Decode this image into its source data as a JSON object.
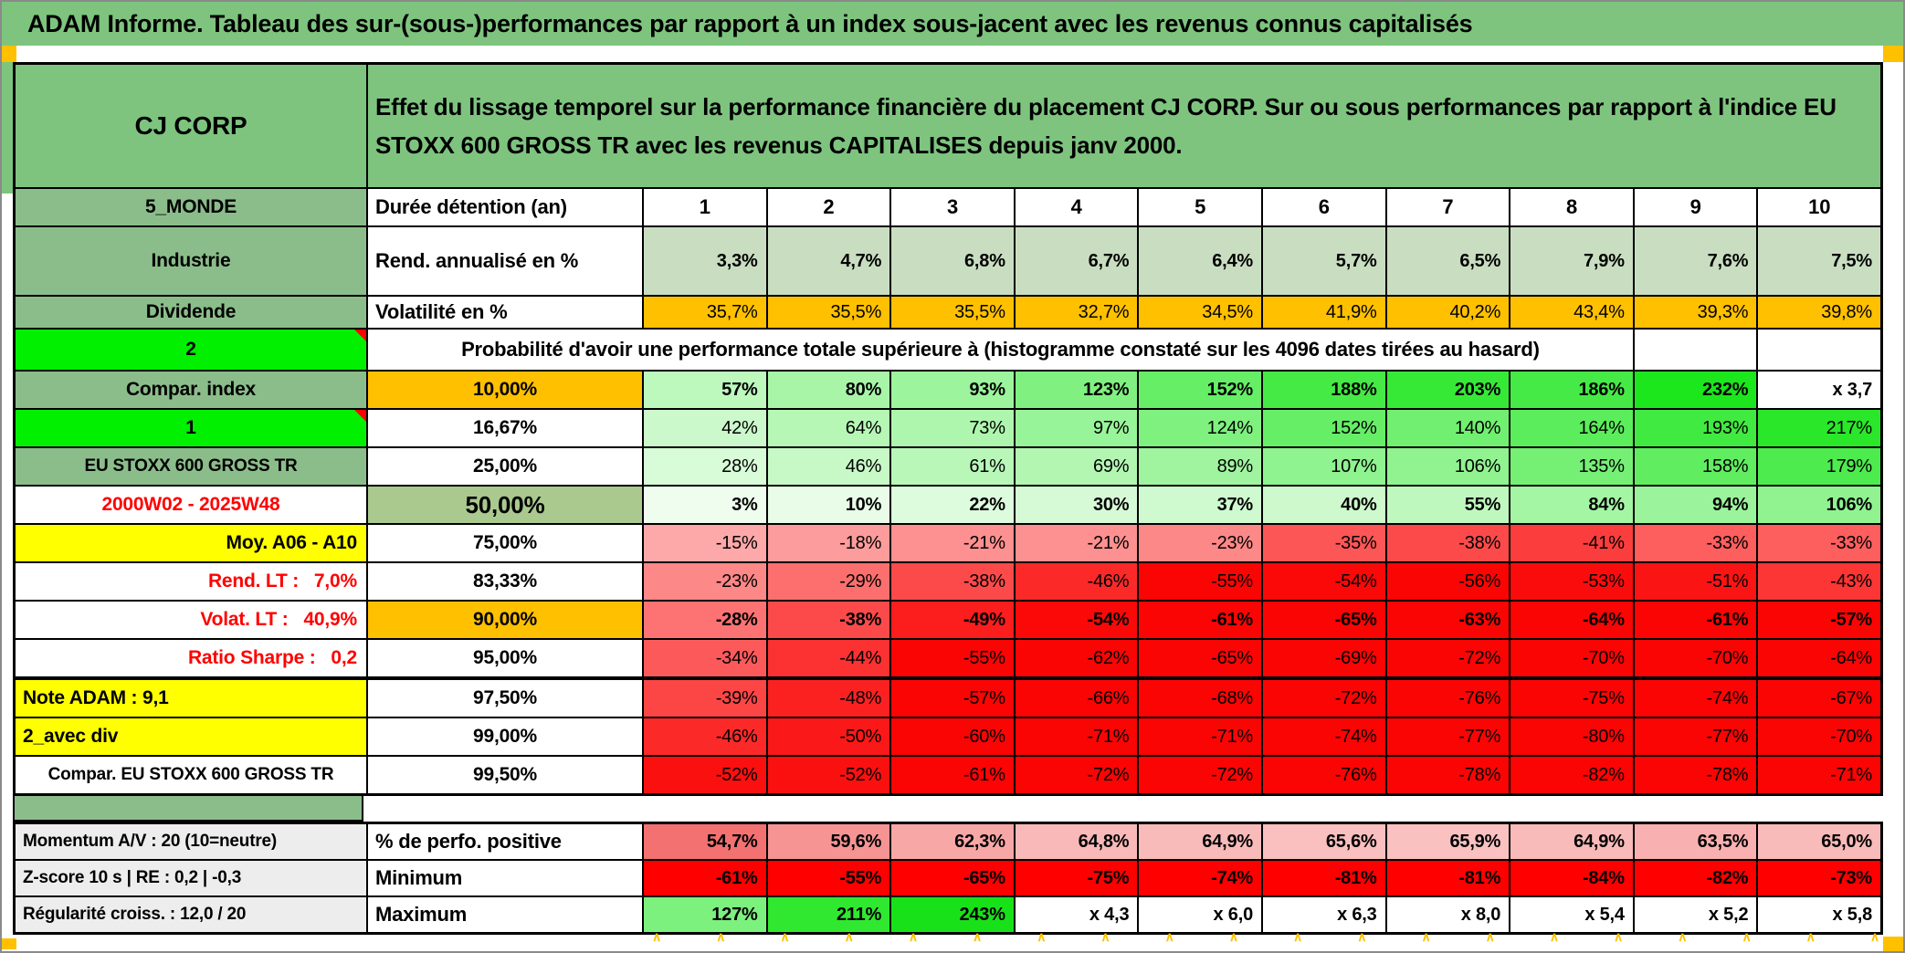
{
  "title": "ADAM Informe. Tableau des sur-(sous-)performances par rapport à un index sous-jacent avec les revenus connus capitalisés",
  "header": {
    "ticker": "CJ CORP",
    "description": "Effet du lissage temporel sur la performance financière du placement CJ CORP. Sur ou sous performances par rapport à l'indice EU STOXX 600 GROSS TR avec les revenus CAPITALISES depuis janv 2000."
  },
  "palette": {
    "band_green": "#7EC47F",
    "label_green": "#8BBD8B",
    "bright_green": "#00F000",
    "olive_green": "#A9C98E",
    "orange": "#FFC000",
    "yellow": "#FFFF00",
    "light_green": "#C9DEC1",
    "pure_red": "#FF0000",
    "gray_label": "#EDEDED",
    "red_text": "#FF0000",
    "marker_orange": "#FFC000"
  },
  "info_table": {
    "duree_row": {
      "label": "5_MONDE",
      "metric": "Durée détention (an)",
      "cols": [
        "1",
        "2",
        "3",
        "4",
        "5",
        "6",
        "7",
        "8",
        "9",
        "10"
      ]
    },
    "rend_row": {
      "label": "Industrie",
      "metric": "Rend. annualisé en %",
      "values": [
        "3,3%",
        "4,7%",
        "6,8%",
        "6,7%",
        "6,4%",
        "5,7%",
        "6,5%",
        "7,9%",
        "7,6%",
        "7,5%"
      ]
    },
    "vol_row": {
      "label": "Dividende",
      "metric": "Volatilité en %",
      "values": [
        "35,7%",
        "35,5%",
        "35,5%",
        "32,7%",
        "34,5%",
        "41,9%",
        "40,2%",
        "43,4%",
        "39,3%",
        "39,8%"
      ]
    },
    "prob_header": {
      "label": "2",
      "text": "Probabilité d'avoir une performance totale supérieure à (histogramme constaté sur les 4096 dates tirées au hasard)"
    },
    "prob_rows": [
      {
        "label": "Compar. index",
        "labelStyle": "green",
        "prob": "10,00%",
        "probStyle": "og",
        "bold": true,
        "values": [
          "57%",
          "80%",
          "93%",
          "123%",
          "152%",
          "188%",
          "203%",
          "186%",
          "232%",
          "x 3,7"
        ],
        "scale": "green"
      },
      {
        "label": "1",
        "labelStyle": "bright corner",
        "prob": "16,67%",
        "bold": false,
        "values": [
          "42%",
          "64%",
          "73%",
          "97%",
          "124%",
          "152%",
          "140%",
          "164%",
          "193%",
          "217%"
        ],
        "scale": "green"
      },
      {
        "label": "EU STOXX 600 GROSS TR",
        "labelStyle": "green small",
        "prob": "25,00%",
        "bold": false,
        "values": [
          "28%",
          "46%",
          "61%",
          "69%",
          "89%",
          "107%",
          "106%",
          "135%",
          "158%",
          "179%"
        ],
        "scale": "green"
      },
      {
        "label": "2000W02 - 2025W48",
        "labelStyle": "white redtext",
        "prob": "50,00%",
        "probStyle": "olive",
        "bold": true,
        "values": [
          "3%",
          "10%",
          "22%",
          "30%",
          "37%",
          "40%",
          "55%",
          "84%",
          "94%",
          "106%"
        ],
        "scale": "green"
      },
      {
        "label": "Moy. A06 - A10",
        "labelStyle": "yellow right",
        "prob": "75,00%",
        "bold": false,
        "values": [
          "-15%",
          "-18%",
          "-21%",
          "-21%",
          "-23%",
          "-35%",
          "-38%",
          "-41%",
          "-33%",
          "-33%"
        ],
        "scale": "red"
      },
      {
        "label": "Rend. LT :   7,0%",
        "labelStyle": "white right redtext",
        "prob": "83,33%",
        "bold": false,
        "values": [
          "-23%",
          "-29%",
          "-38%",
          "-46%",
          "-55%",
          "-54%",
          "-56%",
          "-53%",
          "-51%",
          "-43%"
        ],
        "scale": "red"
      },
      {
        "label": "Volat. LT :   40,9%",
        "labelStyle": "white right redtext",
        "prob": "90,00%",
        "probStyle": "og",
        "bold": true,
        "values": [
          "-28%",
          "-38%",
          "-49%",
          "-54%",
          "-61%",
          "-65%",
          "-63%",
          "-64%",
          "-61%",
          "-57%"
        ],
        "scale": "red"
      },
      {
        "label": "Ratio Sharpe :   0,2",
        "labelStyle": "white right redtext",
        "prob": "95,00%",
        "bold": false,
        "values": [
          "-34%",
          "-44%",
          "-55%",
          "-62%",
          "-65%",
          "-69%",
          "-72%",
          "-70%",
          "-70%",
          "-64%"
        ],
        "scale": "red"
      },
      {
        "label": "Note ADAM : 9,1",
        "labelStyle": "yellow left",
        "prob": "97,50%",
        "bold": false,
        "heavyTop": true,
        "values": [
          "-39%",
          "-48%",
          "-57%",
          "-66%",
          "-68%",
          "-72%",
          "-76%",
          "-75%",
          "-74%",
          "-67%"
        ],
        "scale": "red"
      },
      {
        "label": "2_avec div",
        "labelStyle": "yellow left",
        "prob": "99,00%",
        "bold": false,
        "values": [
          "-46%",
          "-50%",
          "-60%",
          "-71%",
          "-71%",
          "-74%",
          "-77%",
          "-80%",
          "-77%",
          "-70%"
        ],
        "scale": "red"
      },
      {
        "label": "Compar. EU STOXX 600 GROSS TR",
        "labelStyle": "white small",
        "prob": "99,50%",
        "bold": false,
        "values": [
          "-52%",
          "-52%",
          "-61%",
          "-72%",
          "-72%",
          "-76%",
          "-78%",
          "-82%",
          "-78%",
          "-71%"
        ],
        "scale": "red"
      }
    ],
    "bottom_rows": [
      {
        "label": "Momentum A/V : 20 (10=neutre)",
        "metric": "% de perfo. positive",
        "bold": true,
        "values": [
          "54,7%",
          "59,6%",
          "62,3%",
          "64,8%",
          "64,9%",
          "65,6%",
          "65,9%",
          "64,9%",
          "63,5%",
          "65,0%"
        ],
        "scale": "pink"
      },
      {
        "label": "Z-score 10 s | RE : 0,2 | -0,3",
        "metric": "Minimum",
        "bold": true,
        "values": [
          "-61%",
          "-55%",
          "-65%",
          "-75%",
          "-74%",
          "-81%",
          "-81%",
          "-84%",
          "-82%",
          "-73%"
        ],
        "scale": "minred"
      },
      {
        "label": "Régularité croiss. : 12,0 / 20",
        "metric": "Maximum",
        "bold": true,
        "values": [
          "127%",
          "211%",
          "243%",
          "x 4,3",
          "x 6,0",
          "x 6,3",
          "x 8,0",
          "x 5,4",
          "x 5,2",
          "x 5,8"
        ],
        "scale": "maxgreen"
      }
    ]
  }
}
